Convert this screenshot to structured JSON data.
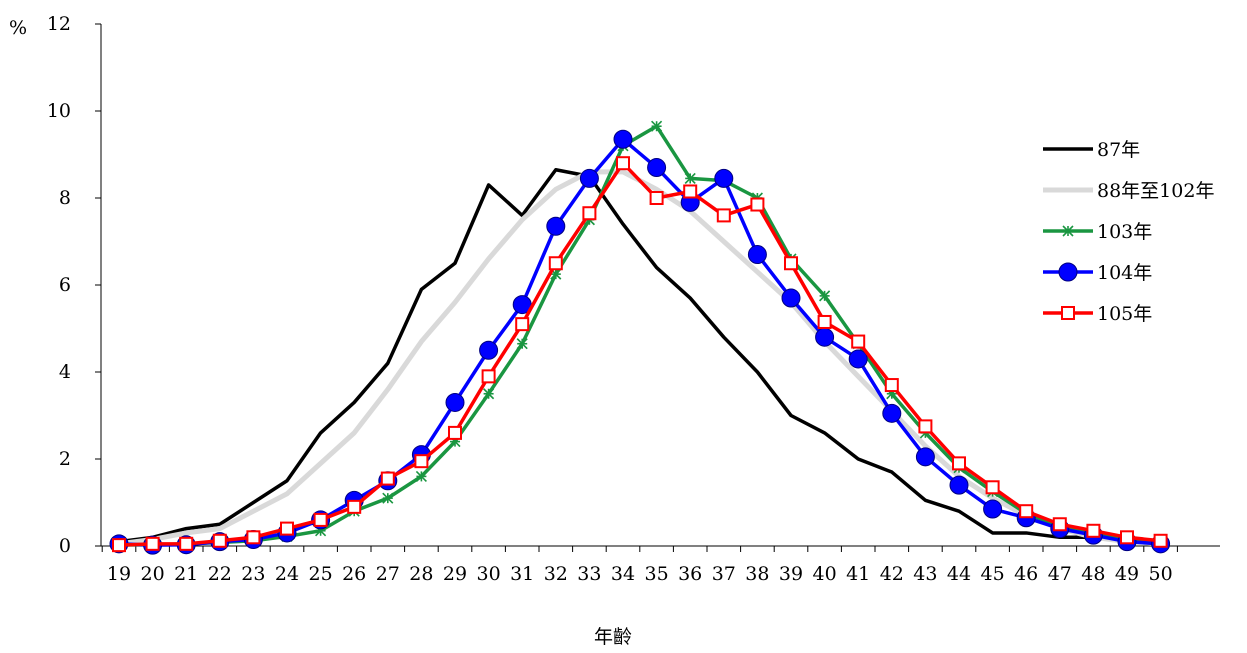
{
  "chart_data": {
    "type": "line",
    "ylabel": "%",
    "xlabel": "年齡",
    "ylim": [
      0,
      12
    ],
    "yticks": [
      0,
      2,
      4,
      6,
      8,
      10,
      12
    ],
    "categories": [
      19,
      20,
      21,
      22,
      23,
      24,
      25,
      26,
      27,
      28,
      29,
      30,
      31,
      32,
      33,
      34,
      35,
      36,
      37,
      38,
      39,
      40,
      41,
      42,
      43,
      44,
      45,
      46,
      47,
      48,
      49,
      50
    ],
    "grid": false,
    "legend_position": "right",
    "series": [
      {
        "name": "87年",
        "color": "#000000",
        "marker": "none",
        "values": [
          0.1,
          0.2,
          0.4,
          0.5,
          1.0,
          1.5,
          2.6,
          3.3,
          4.2,
          5.9,
          6.5,
          8.3,
          7.6,
          8.65,
          8.5,
          7.4,
          6.4,
          5.7,
          4.8,
          4.0,
          3.0,
          2.6,
          2.0,
          1.7,
          1.05,
          0.8,
          0.3,
          0.3,
          0.2,
          0.2,
          0.1,
          0.05
        ]
      },
      {
        "name": "88年至102年",
        "color": "#d9d9d9",
        "marker": "none",
        "values": [
          0.05,
          0.15,
          0.3,
          0.4,
          0.8,
          1.2,
          1.9,
          2.6,
          3.6,
          4.7,
          5.6,
          6.6,
          7.5,
          8.2,
          8.6,
          8.6,
          8.2,
          7.7,
          7.0,
          6.3,
          5.6,
          4.7,
          3.9,
          3.1,
          2.3,
          1.6,
          1.1,
          0.7,
          0.4,
          0.2,
          0.1,
          0.05
        ]
      },
      {
        "name": "103年",
        "color": "#1a9641",
        "marker": "star",
        "values": [
          0.02,
          0.03,
          0.05,
          0.08,
          0.12,
          0.22,
          0.35,
          0.8,
          1.1,
          1.6,
          2.4,
          3.5,
          4.65,
          6.25,
          7.5,
          9.2,
          9.65,
          8.45,
          8.4,
          8.0,
          6.6,
          5.75,
          4.65,
          3.5,
          2.6,
          1.8,
          1.25,
          0.75,
          0.45,
          0.3,
          0.15,
          0.08
        ]
      },
      {
        "name": "104年",
        "color": "#0000ff",
        "marker": "circle",
        "values": [
          0.05,
          0.02,
          0.03,
          0.1,
          0.15,
          0.3,
          0.6,
          1.05,
          1.5,
          2.1,
          3.3,
          4.5,
          5.55,
          7.35,
          8.45,
          9.35,
          8.7,
          7.9,
          8.45,
          6.7,
          5.7,
          4.8,
          4.3,
          3.05,
          2.05,
          1.4,
          0.85,
          0.65,
          0.4,
          0.25,
          0.1,
          0.05
        ]
      },
      {
        "name": "105年",
        "color": "#ff0000",
        "marker": "square",
        "values": [
          0.02,
          0.05,
          0.05,
          0.12,
          0.2,
          0.4,
          0.6,
          0.9,
          1.55,
          1.95,
          2.6,
          3.9,
          5.1,
          6.5,
          7.65,
          8.8,
          8.0,
          8.15,
          7.6,
          7.85,
          6.5,
          5.15,
          4.7,
          3.7,
          2.75,
          1.9,
          1.35,
          0.8,
          0.5,
          0.35,
          0.2,
          0.12
        ]
      }
    ]
  }
}
